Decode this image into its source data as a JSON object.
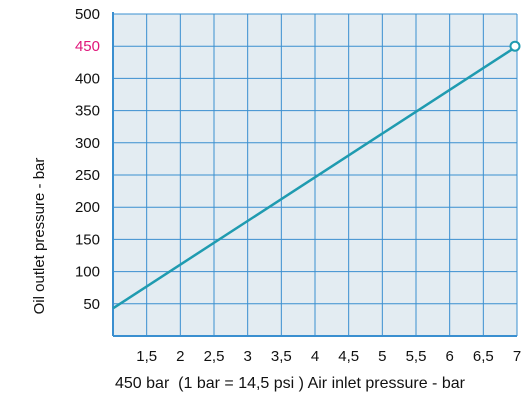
{
  "chart_data": {
    "type": "line",
    "ylabel": "Oil outlet pressure - bar",
    "xlabel": "450 bar  (1 bar = 14,5 psi ) Air inlet pressure - bar",
    "xlim": [
      1,
      7
    ],
    "ylim": [
      0,
      500
    ],
    "x_ticks": [
      1.5,
      2,
      2.5,
      3,
      3.5,
      4,
      4.5,
      5,
      5.5,
      6,
      6.5,
      7
    ],
    "x_tick_labels": [
      "1,5",
      "2",
      "2,5",
      "3",
      "3,5",
      "4",
      "4,5",
      "5",
      "5,5",
      "6",
      "6,5",
      "7"
    ],
    "y_ticks": [
      50,
      100,
      150,
      200,
      250,
      300,
      350,
      400,
      450,
      500
    ],
    "y_tick_labels": [
      "50",
      "100",
      "150",
      "200",
      "250",
      "300",
      "350",
      "400",
      "450",
      "500"
    ],
    "highlight_tick": "450",
    "grid": true,
    "series": [
      {
        "x": [
          1,
          7
        ],
        "values": [
          43,
          450
        ],
        "color": "#1f9bb0",
        "end_marker": "open-circle"
      }
    ],
    "colors": {
      "plot_background": "#e3ecf2",
      "grid": "#3a8fd0",
      "axis": "#3a8fd0",
      "highlight_tick": "#e0157a",
      "text": "#111111"
    }
  }
}
